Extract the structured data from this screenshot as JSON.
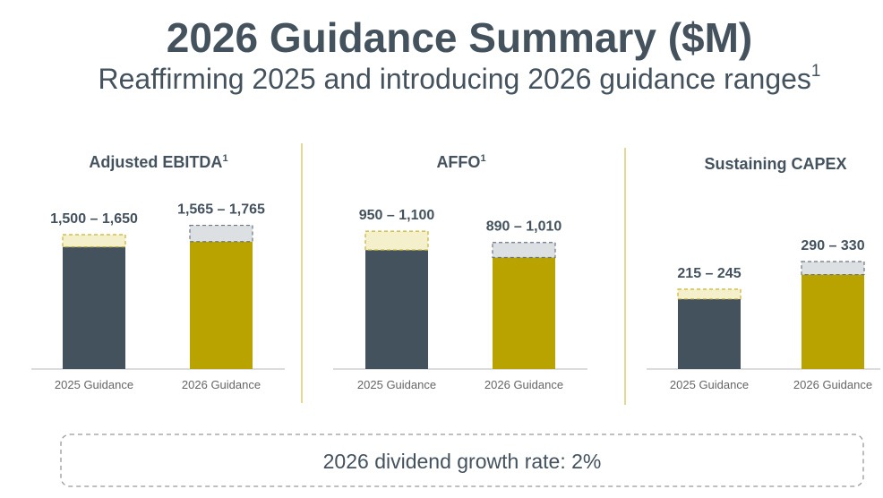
{
  "title": "2026 Guidance Summary ($M)",
  "subtitle": "Reaffirming 2025 and introducing 2026 guidance ranges",
  "subtitle_note": "1",
  "footer": "2026 dividend growth rate: 2%",
  "chart_data": [
    {
      "type": "range",
      "title": "Adjusted EBITDA",
      "title_note": "1",
      "categories": [
        "2025 Guidance",
        "2026 Guidance"
      ],
      "colors": [
        "#44525e",
        "#b8a300"
      ],
      "low": [
        1500,
        1565
      ],
      "high": [
        1650,
        1765
      ],
      "value_labels": [
        "1,500 – 1,650",
        "1,565 – 1,765"
      ],
      "ylim": [
        0,
        2200
      ]
    },
    {
      "type": "range",
      "title": "AFFO",
      "title_note": "1",
      "categories": [
        "2025 Guidance",
        "2026 Guidance"
      ],
      "colors": [
        "#44525e",
        "#b8a300"
      ],
      "low": [
        950,
        890
      ],
      "high": [
        1100,
        1010
      ],
      "value_labels": [
        "950 – 1,100",
        "890 – 1,010"
      ],
      "ylim": [
        0,
        1430
      ]
    },
    {
      "type": "range",
      "title": "Sustaining CAPEX",
      "categories": [
        "2025 Guidance",
        "2026 Guidance"
      ],
      "colors": [
        "#44525e",
        "#b8a300"
      ],
      "low": [
        215,
        290
      ],
      "high": [
        245,
        330
      ],
      "value_labels": [
        "215 – 245",
        "290 – 330"
      ],
      "ylim": [
        0,
        550
      ]
    }
  ]
}
